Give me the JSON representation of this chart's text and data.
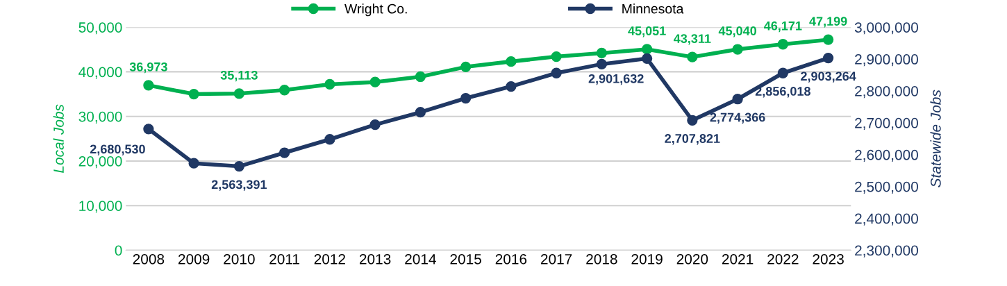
{
  "chart_data": {
    "type": "line",
    "categories": [
      "2008",
      "2009",
      "2010",
      "2011",
      "2012",
      "2013",
      "2014",
      "2015",
      "2016",
      "2017",
      "2018",
      "2019",
      "2020",
      "2021",
      "2022",
      "2023"
    ],
    "series": [
      {
        "name": "Wright Co.",
        "color": "#00b050",
        "values": [
          36973,
          35000,
          35113,
          35900,
          37200,
          37700,
          38900,
          41100,
          42300,
          43400,
          44200,
          45051,
          43311,
          45040,
          46171,
          47199
        ],
        "value_labels": [
          "36,973",
          null,
          "35,113",
          null,
          null,
          null,
          null,
          null,
          null,
          null,
          null,
          "45,051",
          "43,311",
          "45,040",
          "46,171",
          "47,199"
        ]
      },
      {
        "name": "Minnesota",
        "color": "#203864",
        "axis": "y2",
        "values": [
          2680530,
          2573000,
          2563391,
          2606000,
          2648000,
          2694000,
          2733000,
          2777000,
          2814000,
          2856000,
          2884000,
          2901632,
          2707821,
          2774366,
          2856018,
          2903264
        ],
        "value_labels": [
          "2,680,530",
          null,
          "2,563,391",
          null,
          null,
          null,
          null,
          null,
          null,
          null,
          null,
          "2,901,632",
          "2,707,821",
          "2,774,366",
          "2,856,018",
          "2,903,264"
        ]
      }
    ],
    "ylabel": "Local Jobs",
    "y2label": "Statewide Jobs",
    "ylim": [
      0,
      50000
    ],
    "yticks": [
      {
        "value": 0,
        "label": "0"
      },
      {
        "value": 10000,
        "label": "10,000"
      },
      {
        "value": 20000,
        "label": "20,000"
      },
      {
        "value": 30000,
        "label": "30,000"
      },
      {
        "value": 40000,
        "label": "40,000"
      },
      {
        "value": 50000,
        "label": "50,000"
      }
    ],
    "y2lim": [
      2300000,
      3000000
    ],
    "y2ticks": [
      {
        "value": 2300000,
        "label": "2,300,000"
      },
      {
        "value": 2400000,
        "label": "2,400,000"
      },
      {
        "value": 2500000,
        "label": "2,500,000"
      },
      {
        "value": 2600000,
        "label": "2,600,000"
      },
      {
        "value": 2700000,
        "label": "2,700,000"
      },
      {
        "value": 2800000,
        "label": "2,800,000"
      },
      {
        "value": 2900000,
        "label": "2,900,000"
      },
      {
        "value": 3000000,
        "label": "3,000,000"
      }
    ],
    "grid": "y",
    "legend": "top",
    "marker": "circle",
    "line_style": "solid"
  }
}
